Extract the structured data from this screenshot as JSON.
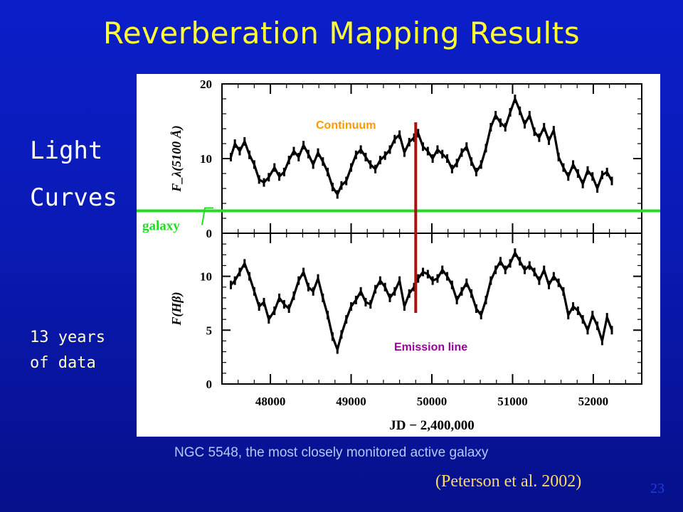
{
  "slide": {
    "title": "Reverberation Mapping Results",
    "side_label_1": "Light",
    "side_label_2": "Curves",
    "years_1": "13 years",
    "years_2": "of data",
    "caption": "NGC 5548, the most closely monitored active galaxy",
    "citation": "(Peterson et al. 2002)",
    "page_number": "23"
  },
  "colors": {
    "background": "#0a1ab5",
    "title": "#ffff33",
    "galaxy_line": "#22dd22",
    "marker_line": "#aa1111",
    "continuum_label": "#ff9900",
    "emission_label": "#990099"
  },
  "chart_data": {
    "type": "line",
    "xlabel": "JD − 2,400,000",
    "xlim": [
      47400,
      52600
    ],
    "xticks": [
      48000,
      49000,
      50000,
      51000,
      52000
    ],
    "panels": [
      {
        "name": "continuum",
        "ylabel": "F_λ(5100 Å)",
        "ylim": [
          0,
          20
        ],
        "yticks": [
          0,
          10,
          20
        ],
        "x": [
          47510,
          47560,
          47620,
          47680,
          47740,
          47800,
          47860,
          47920,
          47980,
          48050,
          48110,
          48170,
          48230,
          48290,
          48350,
          48410,
          48470,
          48530,
          48590,
          48650,
          48710,
          48770,
          48830,
          48880,
          48940,
          49000,
          49060,
          49120,
          49180,
          49240,
          49300,
          49360,
          49420,
          49480,
          49540,
          49600,
          49660,
          49720,
          49780,
          49830,
          49890,
          49950,
          50010,
          50070,
          50130,
          50190,
          50250,
          50310,
          50370,
          50430,
          50490,
          50550,
          50610,
          50670,
          50730,
          50790,
          50850,
          50910,
          50970,
          51030,
          51090,
          51150,
          51210,
          51270,
          51330,
          51390,
          51450,
          51510,
          51570,
          51630,
          51690,
          51750,
          51810,
          51870,
          51930,
          51990,
          52050,
          52110,
          52170,
          52230
        ],
        "y": [
          10.2,
          12.0,
          11.0,
          12.3,
          10.5,
          9.2,
          7.2,
          6.8,
          7.5,
          8.8,
          7.6,
          8.2,
          9.8,
          11.0,
          10.2,
          11.8,
          10.6,
          9.2,
          10.8,
          9.6,
          8.2,
          6.2,
          5.2,
          6.4,
          7.0,
          8.8,
          10.5,
          11.2,
          10.2,
          9.2,
          8.6,
          9.8,
          10.4,
          11.2,
          12.6,
          13.2,
          10.8,
          12.2,
          12.8,
          13.4,
          11.6,
          11.0,
          10.0,
          11.2,
          10.6,
          10.0,
          8.6,
          9.4,
          10.8,
          11.6,
          9.6,
          8.2,
          9.2,
          11.4,
          14.2,
          15.8,
          14.8,
          14.2,
          16.2,
          18.0,
          16.4,
          14.6,
          15.8,
          13.6,
          12.8,
          14.2,
          12.4,
          13.8,
          10.2,
          8.8,
          7.6,
          9.2,
          8.0,
          6.6,
          8.4,
          7.6,
          6.0,
          7.8,
          8.2,
          7.0
        ]
      },
      {
        "name": "emission",
        "ylabel": "F(Hβ)",
        "ylim": [
          0,
          14
        ],
        "yticks": [
          0,
          5,
          10
        ],
        "x": [
          47510,
          47560,
          47620,
          47680,
          47740,
          47800,
          47860,
          47920,
          47980,
          48050,
          48110,
          48170,
          48230,
          48290,
          48350,
          48410,
          48470,
          48530,
          48590,
          48650,
          48710,
          48770,
          48830,
          48880,
          48940,
          49000,
          49060,
          49120,
          49180,
          49240,
          49300,
          49360,
          49420,
          49480,
          49540,
          49600,
          49660,
          49720,
          49780,
          49830,
          49890,
          49950,
          50010,
          50070,
          50130,
          50190,
          50250,
          50310,
          50370,
          50430,
          50490,
          50550,
          50610,
          50670,
          50730,
          50790,
          50850,
          50910,
          50970,
          51030,
          51090,
          51150,
          51210,
          51270,
          51330,
          51390,
          51450,
          51510,
          51570,
          51630,
          51690,
          51750,
          51810,
          51870,
          51930,
          51990,
          52050,
          52110,
          52170,
          52230
        ],
        "y": [
          9.2,
          9.6,
          10.4,
          11.2,
          10.0,
          8.6,
          7.2,
          7.6,
          6.0,
          6.8,
          8.0,
          7.4,
          7.0,
          8.2,
          9.6,
          10.4,
          9.0,
          8.6,
          9.8,
          8.0,
          6.4,
          4.4,
          3.2,
          4.6,
          6.0,
          7.2,
          7.8,
          8.6,
          7.6,
          7.4,
          8.8,
          9.6,
          9.0,
          8.0,
          8.6,
          9.6,
          7.2,
          8.4,
          9.0,
          9.8,
          10.4,
          10.2,
          9.6,
          9.8,
          10.6,
          10.0,
          9.2,
          7.8,
          8.6,
          9.4,
          8.4,
          7.0,
          6.4,
          7.8,
          9.6,
          10.6,
          11.4,
          10.6,
          11.2,
          12.2,
          11.4,
          10.6,
          11.0,
          10.4,
          9.6,
          10.6,
          9.2,
          10.0,
          9.4,
          8.6,
          6.4,
          7.2,
          6.8,
          6.0,
          5.0,
          6.4,
          5.4,
          4.0,
          6.2,
          5.0
        ]
      }
    ],
    "annotations": {
      "galaxy_label": "galaxy",
      "galaxy_level": 3.0,
      "continuum_label": "Continuum",
      "emission_label": "Emission line",
      "marker_jd": 49800
    }
  }
}
